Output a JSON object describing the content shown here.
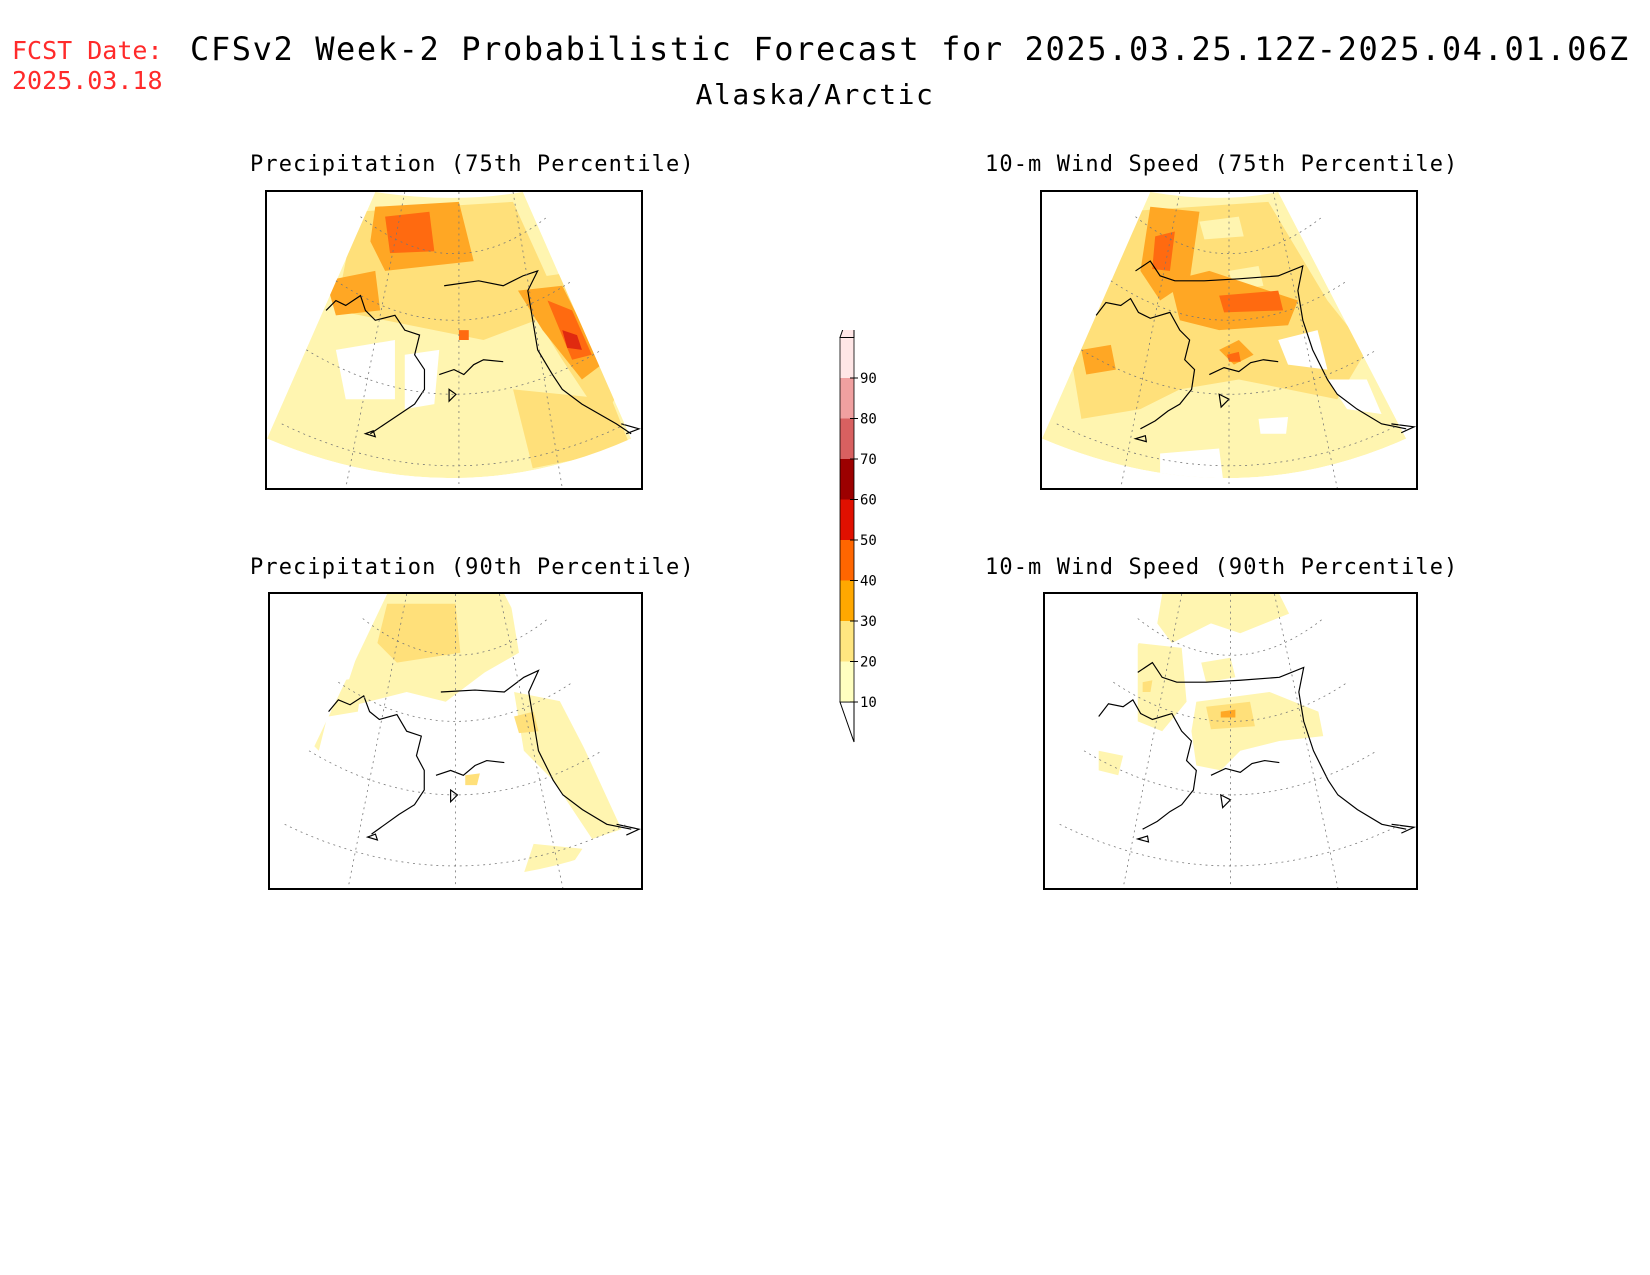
{
  "header": {
    "fcst_label": "FCST Date:\n2025.03.18",
    "title": "CFSv2 Week-2 Probabilistic Forecast for 2025.03.25.12Z-2025.04.01.06Z",
    "subtitle": "Alaska/Arctic"
  },
  "panels": [
    {
      "title": "Precipitation (75th Percentile)"
    },
    {
      "title": "10-m Wind Speed (75th Percentile)"
    },
    {
      "title": "Precipitation (90th Percentile)"
    },
    {
      "title": "10-m Wind Speed (90th Percentile)"
    }
  ],
  "colorbar": {
    "ticks": [
      "10",
      "20",
      "30",
      "40",
      "50",
      "60",
      "70",
      "80",
      "90"
    ],
    "colors": [
      "#ffffc0",
      "#ffe680",
      "#ffa800",
      "#ff6600",
      "#e01000",
      "#9c0000",
      "#d86060",
      "#f0a0a0",
      "#ffe6e6"
    ]
  },
  "map_colors": {
    "c10": "#fff5b0",
    "c20": "#ffe07a",
    "c30": "#ffa724",
    "c40": "#ff6a10",
    "c50": "#e02a10"
  }
}
